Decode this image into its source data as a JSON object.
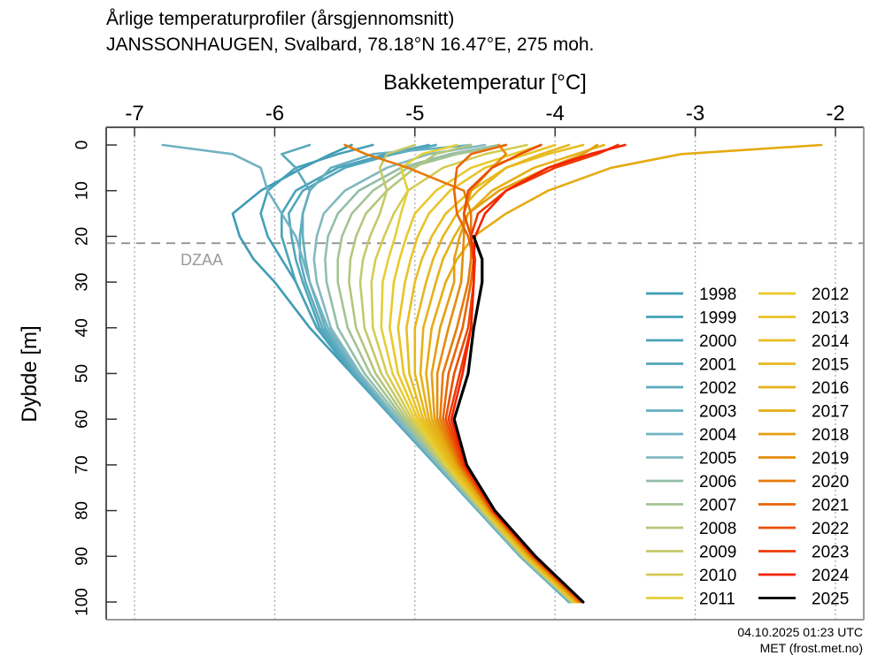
{
  "header": {
    "title_line1": "Årlige temperaturprofiler (årsgjennomsnitt)",
    "title_line2": "JANSSONHAUGEN, Svalbard, 78.18°N 16.47°E, 275 moh."
  },
  "footer": {
    "timestamp": "04.10.2025 01:23 UTC",
    "source": "MET (frost.met.no)"
  },
  "chart_data": {
    "type": "line",
    "title": "Årlige temperaturprofiler (årsgjennomsnitt)",
    "subtitle": "JANSSONHAUGEN, Svalbard, 78.18°N 16.47°E, 275 moh.",
    "xlabel": "Bakketemperatur [°C]",
    "ylabel": "Dybde [m]",
    "xlim": [
      -7.2,
      -1.8
    ],
    "ylim": [
      100,
      0
    ],
    "x_axis_position": "top",
    "y_inverted": true,
    "xticks": [
      -7,
      -6,
      -5,
      -4,
      -3,
      -2
    ],
    "xtick_labels": [
      "-7",
      "-6",
      "-5",
      "-4",
      "-3",
      "-2"
    ],
    "yticks": [
      0,
      10,
      20,
      30,
      40,
      50,
      60,
      70,
      80,
      90,
      100
    ],
    "ytick_labels": [
      "0",
      "10",
      "20",
      "30",
      "40",
      "50",
      "60",
      "70",
      "80",
      "90",
      "100"
    ],
    "grid": "vertical dotted at x ticks",
    "legend": "bottom-right, two columns",
    "annotations": [
      {
        "type": "hline-dashed",
        "depth": 21.5,
        "label": "DZAA",
        "color": "#999999"
      }
    ],
    "depths": [
      0,
      2,
      5,
      10,
      15,
      20,
      25,
      30,
      40,
      50,
      60,
      70,
      80,
      90,
      100
    ],
    "series": [
      {
        "name": "1998",
        "color": "#3f9bb5",
        "values": [
          -5.45,
          -5.6,
          -5.8,
          -6.1,
          -6.3,
          -6.25,
          -6.15,
          -6.0,
          -5.75,
          -5.45,
          -5.15,
          -4.85,
          -4.55,
          -4.25,
          -3.9
        ]
      },
      {
        "name": "1999",
        "color": "#45a0b7",
        "values": [
          -5.3,
          -5.55,
          -5.85,
          -6.05,
          -6.1,
          -6.05,
          -5.95,
          -5.85,
          -5.7,
          -5.45,
          -5.15,
          -4.85,
          -4.55,
          -4.25,
          -3.9
        ]
      },
      {
        "name": "2000",
        "color": "#4aa3b9",
        "values": [
          -4.9,
          -5.2,
          -5.55,
          -5.85,
          -5.95,
          -5.95,
          -5.9,
          -5.85,
          -5.7,
          -5.45,
          -5.15,
          -4.85,
          -4.55,
          -4.25,
          -3.9
        ]
      },
      {
        "name": "2001",
        "color": "#52a6bb",
        "values": [
          -4.85,
          -5.15,
          -5.5,
          -5.8,
          -5.9,
          -5.88,
          -5.85,
          -5.8,
          -5.68,
          -5.44,
          -5.15,
          -4.85,
          -4.55,
          -4.25,
          -3.9
        ]
      },
      {
        "name": "2002",
        "color": "#5aaabd",
        "values": [
          -5.75,
          -5.95,
          -5.85,
          -5.75,
          -5.8,
          -5.82,
          -5.82,
          -5.78,
          -5.66,
          -5.43,
          -5.14,
          -4.84,
          -4.55,
          -4.25,
          -3.9
        ]
      },
      {
        "name": "2003",
        "color": "#64aec0",
        "values": [
          -4.6,
          -5.3,
          -5.6,
          -5.75,
          -5.8,
          -5.8,
          -5.78,
          -5.75,
          -5.64,
          -5.42,
          -5.14,
          -4.84,
          -4.55,
          -4.25,
          -3.89
        ]
      },
      {
        "name": "2004",
        "color": "#70b2c2",
        "values": [
          -6.8,
          -6.3,
          -6.1,
          -6.05,
          -5.95,
          -5.85,
          -5.8,
          -5.75,
          -5.62,
          -5.4,
          -5.13,
          -4.84,
          -4.54,
          -4.24,
          -3.89
        ]
      },
      {
        "name": "2005",
        "color": "#82b9bf",
        "values": [
          -4.5,
          -4.9,
          -5.2,
          -5.5,
          -5.65,
          -5.7,
          -5.72,
          -5.7,
          -5.6,
          -5.39,
          -5.12,
          -4.83,
          -4.54,
          -4.24,
          -3.89
        ]
      },
      {
        "name": "2006",
        "color": "#93bea8",
        "values": [
          -4.4,
          -4.75,
          -5.1,
          -5.4,
          -5.55,
          -5.62,
          -5.64,
          -5.63,
          -5.55,
          -5.36,
          -5.1,
          -4.82,
          -4.53,
          -4.24,
          -3.88
        ]
      },
      {
        "name": "2007",
        "color": "#a4c394",
        "values": [
          -4.35,
          -4.7,
          -5.05,
          -5.3,
          -5.45,
          -5.52,
          -5.55,
          -5.55,
          -5.48,
          -5.32,
          -5.08,
          -4.81,
          -4.53,
          -4.23,
          -3.88
        ]
      },
      {
        "name": "2008",
        "color": "#b4c67c",
        "values": [
          -4.6,
          -4.85,
          -5.0,
          -5.2,
          -5.35,
          -5.42,
          -5.46,
          -5.47,
          -5.42,
          -5.28,
          -5.06,
          -4.8,
          -4.52,
          -4.23,
          -3.88
        ]
      },
      {
        "name": "2009",
        "color": "#c4c96a",
        "values": [
          -5.0,
          -5.2,
          -5.25,
          -5.2,
          -5.25,
          -5.32,
          -5.37,
          -5.39,
          -5.36,
          -5.24,
          -5.04,
          -4.79,
          -4.52,
          -4.22,
          -3.87
        ]
      },
      {
        "name": "2010",
        "color": "#d4cc55",
        "values": [
          -4.2,
          -4.5,
          -4.8,
          -5.05,
          -5.15,
          -5.22,
          -5.28,
          -5.31,
          -5.3,
          -5.2,
          -5.02,
          -4.78,
          -4.51,
          -4.22,
          -3.87
        ]
      },
      {
        "name": "2011",
        "color": "#e4cf3a",
        "values": [
          -4.7,
          -4.95,
          -5.1,
          -5.05,
          -5.1,
          -5.14,
          -5.19,
          -5.23,
          -5.24,
          -5.16,
          -5.0,
          -4.77,
          -4.5,
          -4.21,
          -3.87
        ]
      },
      {
        "name": "2012",
        "color": "#e9c92a",
        "values": [
          -4.1,
          -4.3,
          -4.6,
          -4.85,
          -5.0,
          -5.06,
          -5.11,
          -5.15,
          -5.18,
          -5.12,
          -4.98,
          -4.76,
          -4.5,
          -4.21,
          -3.86
        ]
      },
      {
        "name": "2013",
        "color": "#e9c324",
        "values": [
          -4.0,
          -4.2,
          -4.5,
          -4.75,
          -4.9,
          -4.98,
          -5.03,
          -5.07,
          -5.12,
          -5.08,
          -4.96,
          -4.75,
          -4.49,
          -4.2,
          -3.86
        ]
      },
      {
        "name": "2014",
        "color": "#e8bd20",
        "values": [
          -3.8,
          -4.05,
          -4.35,
          -4.6,
          -4.78,
          -4.88,
          -4.95,
          -5.0,
          -5.06,
          -5.04,
          -4.94,
          -4.74,
          -4.49,
          -4.2,
          -3.85
        ]
      },
      {
        "name": "2015",
        "color": "#e7b71c",
        "values": [
          -3.9,
          -4.1,
          -4.35,
          -4.55,
          -4.7,
          -4.8,
          -4.87,
          -4.92,
          -5.0,
          -5.0,
          -4.92,
          -4.73,
          -4.48,
          -4.19,
          -3.85
        ]
      },
      {
        "name": "2016",
        "color": "#e6b118",
        "values": [
          -3.65,
          -3.85,
          -4.15,
          -4.45,
          -4.62,
          -4.72,
          -4.8,
          -4.85,
          -4.94,
          -4.96,
          -4.9,
          -4.72,
          -4.48,
          -4.19,
          -3.84
        ]
      },
      {
        "name": "2017",
        "color": "#e5ab12",
        "values": [
          -2.1,
          -3.1,
          -3.6,
          -4.05,
          -4.35,
          -4.58,
          -4.7,
          -4.78,
          -4.88,
          -4.92,
          -4.88,
          -4.71,
          -4.47,
          -4.18,
          -3.84
        ]
      },
      {
        "name": "2018",
        "color": "#e49f10",
        "values": [
          -3.7,
          -3.8,
          -4.05,
          -4.4,
          -4.62,
          -4.68,
          -4.72,
          -4.72,
          -4.82,
          -4.88,
          -4.86,
          -4.7,
          -4.47,
          -4.18,
          -3.83
        ]
      },
      {
        "name": "2019",
        "color": "#e58c0c",
        "values": [
          -4.4,
          -4.35,
          -4.45,
          -4.6,
          -4.65,
          -4.65,
          -4.66,
          -4.67,
          -4.76,
          -4.84,
          -4.84,
          -4.69,
          -4.46,
          -4.17,
          -3.83
        ]
      },
      {
        "name": "2020",
        "color": "#e67a08",
        "values": [
          -5.5,
          -5.35,
          -5.05,
          -4.65,
          -4.6,
          -4.6,
          -4.6,
          -4.62,
          -4.7,
          -4.8,
          -4.82,
          -4.68,
          -4.46,
          -4.17,
          -3.82
        ]
      },
      {
        "name": "2021",
        "color": "#e86606",
        "values": [
          -4.35,
          -4.6,
          -4.7,
          -4.72,
          -4.7,
          -4.62,
          -4.58,
          -4.6,
          -4.66,
          -4.76,
          -4.8,
          -4.67,
          -4.45,
          -4.16,
          -3.82
        ]
      },
      {
        "name": "2022",
        "color": "#ea4e04",
        "values": [
          -4.1,
          -4.25,
          -4.45,
          -4.62,
          -4.65,
          -4.6,
          -4.57,
          -4.58,
          -4.62,
          -4.72,
          -4.78,
          -4.66,
          -4.45,
          -4.16,
          -3.81
        ]
      },
      {
        "name": "2023",
        "color": "#ee3a02",
        "values": [
          -3.55,
          -3.7,
          -4.0,
          -4.35,
          -4.55,
          -4.6,
          -4.58,
          -4.58,
          -4.6,
          -4.68,
          -4.76,
          -4.65,
          -4.44,
          -4.15,
          -3.8
        ]
      },
      {
        "name": "2024",
        "color": "#f42200",
        "values": [
          -3.5,
          -3.75,
          -4.05,
          -4.35,
          -4.5,
          -4.57,
          -4.58,
          -4.58,
          -4.6,
          -4.66,
          -4.74,
          -4.64,
          -4.44,
          -4.15,
          -3.8
        ]
      },
      {
        "name": "2025",
        "color": "#000000",
        "values": [
          null,
          null,
          null,
          null,
          null,
          -4.58,
          -4.52,
          -4.52,
          -4.58,
          -4.62,
          -4.72,
          -4.63,
          -4.43,
          -4.14,
          -3.8
        ]
      }
    ]
  }
}
